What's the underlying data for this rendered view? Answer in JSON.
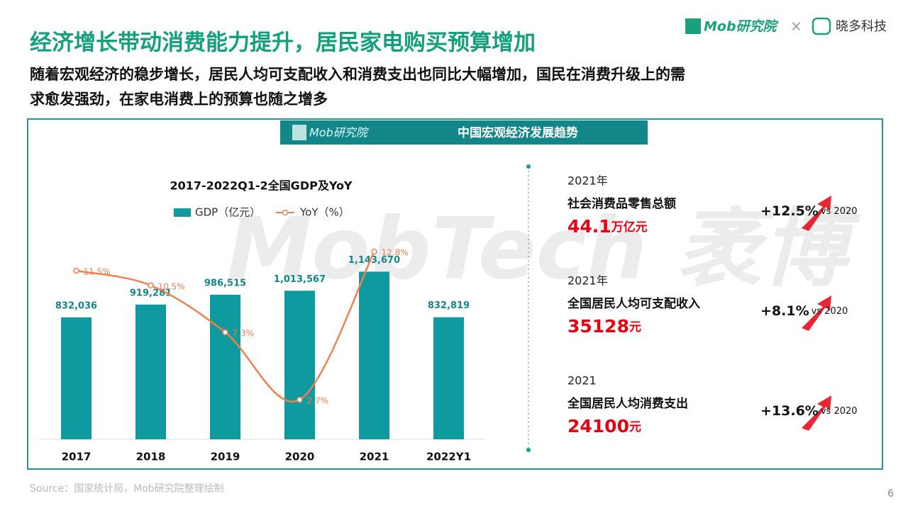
{
  "header": {
    "title": "经济增长带动消费能力提升，居民家电购买预算增加",
    "subtitle_lines": [
      "随着宏观经济的稳步增长，居民人均可支配收入和消费支出也同比大幅增加，国民在消费升级上的需",
      "求愈发强劲，在家电消费上的预算也随之增多"
    ],
    "logo_left": "Mob研究院",
    "times": "×",
    "logo_right": "晓多科技"
  },
  "panel": {
    "logo": "Mob研究院",
    "title": "中国宏观经济发展趋势",
    "watermark": "MobTech 袤博"
  },
  "chart_data": {
    "type": "bar",
    "title": "2017-2022Q1-2全国GDP及YoY",
    "categories": [
      "2017",
      "2018",
      "2019",
      "2020",
      "2021",
      "2022Y1"
    ],
    "ylim": [
      0,
      1600000
    ],
    "y2lim": [
      0,
      16
    ],
    "series": [
      {
        "name": "GDP（亿元）",
        "type": "bar",
        "color": "#0e9a9e",
        "values": [
          832036,
          919281,
          986515,
          1013567,
          1143670,
          832819
        ],
        "value_labels": [
          "832,036",
          "919,281",
          "986,515",
          "1,013,567",
          "1,143,670",
          "832,819"
        ]
      },
      {
        "name": "YoY（%）",
        "type": "line",
        "axis": "y2",
        "color": "#f0804f",
        "values": [
          11.5,
          10.5,
          7.3,
          2.7,
          12.8,
          null
        ],
        "value_labels": [
          "11.5%",
          "10.5%",
          "7.3%",
          "2.7%",
          "12.8%",
          null
        ]
      }
    ]
  },
  "stats": [
    {
      "year": "2021年",
      "label": "社会消费品零售总额",
      "value": "44.1",
      "unit": "万亿元",
      "growth": "+12.5%",
      "compare": "vs 2020"
    },
    {
      "year": "2021年",
      "label": "全国居民人均可支配收入",
      "value": "35128",
      "unit": "元",
      "growth": "+8.1%",
      "compare": "vs 2020"
    },
    {
      "year": "2021",
      "label": "全国居民人均消费支出",
      "value": "24100",
      "unit": "元",
      "growth": "+13.6%",
      "compare": "vs 2020"
    }
  ],
  "footer": {
    "source": "Source：国家统计局，Mob研究院整理绘制",
    "page": "6"
  }
}
